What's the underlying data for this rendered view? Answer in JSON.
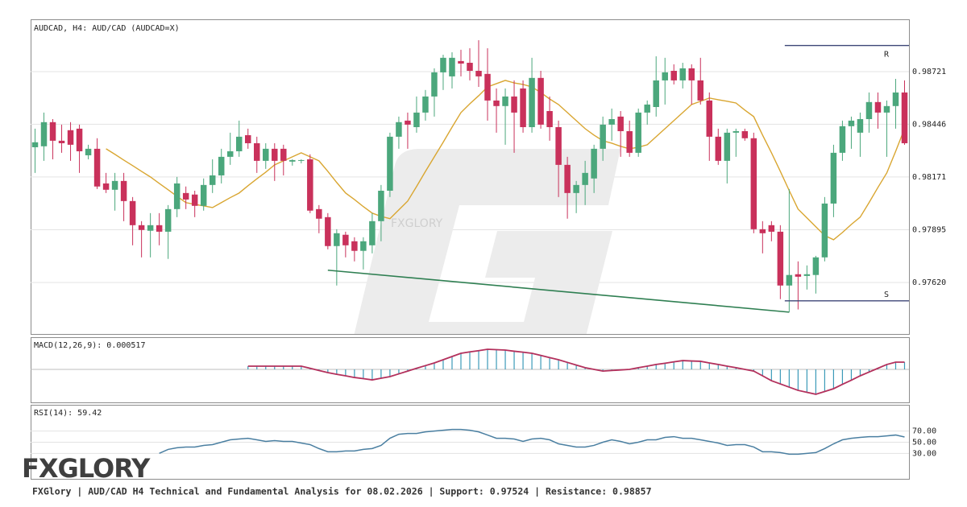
{
  "chart_data": [
    {
      "type": "candlestick",
      "title": "AUDCAD, H4: AUD/CAD (AUDCAD=X)",
      "up_color": "#4ba77c",
      "down_color": "#c9315b",
      "ylim": [
        0.97351,
        0.98994
      ],
      "yticks": [
        0.98721,
        0.98446,
        0.98171,
        0.97895,
        {
          "value": 0.9762,
          "label": "0.97620"
        }
      ],
      "grid": true,
      "watermark": "FXGLORY",
      "ohlc": [
        [
          0.98326,
          0.98423,
          0.98192,
          0.98352
        ],
        [
          0.98331,
          0.98507,
          0.98255,
          0.98457
        ],
        [
          0.98457,
          0.98473,
          0.98263,
          0.9836
        ],
        [
          0.9836,
          0.98444,
          0.98297,
          0.98347
        ],
        [
          0.98415,
          0.98457,
          0.98255,
          0.98339
        ],
        [
          0.98423,
          0.98444,
          0.98192,
          0.98305
        ],
        [
          0.98284,
          0.98339,
          0.98263,
          0.98318
        ],
        [
          0.98318,
          0.98373,
          0.98108,
          0.98121
        ],
        [
          0.98137,
          0.98192,
          0.98087,
          0.98104
        ],
        [
          0.98104,
          0.98192,
          0.97995,
          0.9815
        ],
        [
          0.9815,
          0.98192,
          0.9794,
          0.98045
        ],
        [
          0.98045,
          0.98066,
          0.97814,
          0.97919
        ],
        [
          0.97919,
          0.9794,
          0.97751,
          0.97894
        ],
        [
          0.9789,
          0.97982,
          0.97751,
          0.97919
        ],
        [
          0.97919,
          0.97982,
          0.97814,
          0.97885
        ],
        [
          0.97885,
          0.98024,
          0.97743,
          0.98003
        ],
        [
          0.98003,
          0.98171,
          0.97961,
          0.98137
        ],
        [
          0.98087,
          0.98121,
          0.98003,
          0.98053
        ],
        [
          0.98079,
          0.98099,
          0.97961,
          0.9802
        ],
        [
          0.9802,
          0.98163,
          0.97995,
          0.98129
        ],
        [
          0.98129,
          0.98263,
          0.98087,
          0.98179
        ],
        [
          0.98179,
          0.98318,
          0.98137,
          0.98276
        ],
        [
          0.98276,
          0.98402,
          0.98234,
          0.98305
        ],
        [
          0.98305,
          0.98465,
          0.98276,
          0.98381
        ],
        [
          0.98389,
          0.98423,
          0.98318,
          0.98347
        ],
        [
          0.98347,
          0.98381,
          0.98192,
          0.98255
        ],
        [
          0.98255,
          0.98347,
          0.98213,
          0.98318
        ],
        [
          0.98318,
          0.98347,
          0.9815,
          0.98255
        ],
        [
          0.98318,
          0.98339,
          0.98179,
          0.98255
        ],
        [
          0.98251,
          0.98263,
          0.9823,
          0.98259
        ],
        [
          0.98255,
          0.98263,
          0.98242,
          0.98259
        ],
        [
          0.98263,
          0.98289,
          0.97982,
          0.97995
        ],
        [
          0.98003,
          0.98024,
          0.97877,
          0.97953
        ],
        [
          0.97961,
          0.97982,
          0.97793,
          0.9781
        ],
        [
          0.9781,
          0.97898,
          0.97604,
          0.97877
        ],
        [
          0.97869,
          0.97885,
          0.97751,
          0.97814
        ],
        [
          0.97835,
          0.97856,
          0.9773,
          0.97785
        ],
        [
          0.97785,
          0.97856,
          0.97688,
          0.97835
        ],
        [
          0.97814,
          0.97982,
          0.97772,
          0.9794
        ],
        [
          0.9794,
          0.98129,
          0.97835,
          0.98099
        ],
        [
          0.98099,
          0.98402,
          0.98066,
          0.98381
        ],
        [
          0.98381,
          0.98486,
          0.98318,
          0.98457
        ],
        [
          0.98465,
          0.98507,
          0.98318,
          0.98444
        ],
        [
          0.98431,
          0.98591,
          0.98402,
          0.98507
        ],
        [
          0.98507,
          0.98625,
          0.98465,
          0.98591
        ],
        [
          0.98591,
          0.98738,
          0.98486,
          0.98717
        ],
        [
          0.98717,
          0.98809,
          0.98625,
          0.98793
        ],
        [
          0.98696,
          0.98822,
          0.98633,
          0.98793
        ],
        [
          0.98776,
          0.98835,
          0.98696,
          0.98763
        ],
        [
          0.98767,
          0.98843,
          0.98675,
          0.98725
        ],
        [
          0.98725,
          0.98885,
          0.98641,
          0.98696
        ],
        [
          0.98709,
          0.98843,
          0.98465,
          0.9857
        ],
        [
          0.9857,
          0.98633,
          0.98402,
          0.98541
        ],
        [
          0.98541,
          0.98633,
          0.98339,
          0.98591
        ],
        [
          0.98591,
          0.98675,
          0.98297,
          0.98507
        ],
        [
          0.98633,
          0.98675,
          0.98402,
          0.98431
        ],
        [
          0.98431,
          0.98793,
          0.98402,
          0.98688
        ],
        [
          0.98688,
          0.98725,
          0.98423,
          0.98444
        ],
        [
          0.98515,
          0.98591,
          0.9836,
          0.98431
        ],
        [
          0.98431,
          0.98465,
          0.98066,
          0.98234
        ],
        [
          0.98234,
          0.98276,
          0.97953,
          0.98087
        ],
        [
          0.98087,
          0.9815,
          0.97982,
          0.98129
        ],
        [
          0.98129,
          0.98255,
          0.98024,
          0.98192
        ],
        [
          0.98163,
          0.98339,
          0.98087,
          0.98318
        ],
        [
          0.98318,
          0.98486,
          0.98255,
          0.98444
        ],
        [
          0.98444,
          0.98528,
          0.9836,
          0.98473
        ],
        [
          0.98486,
          0.98515,
          0.98276,
          0.9841
        ],
        [
          0.9841,
          0.98465,
          0.98276,
          0.98297
        ],
        [
          0.98297,
          0.98528,
          0.98276,
          0.98507
        ],
        [
          0.98507,
          0.9857,
          0.98444,
          0.98549
        ],
        [
          0.98536,
          0.98801,
          0.98486,
          0.98675
        ],
        [
          0.98675,
          0.98793,
          0.98549,
          0.98717
        ],
        [
          0.98725,
          0.98759,
          0.98654,
          0.98675
        ],
        [
          0.98675,
          0.98767,
          0.98633,
          0.98738
        ],
        [
          0.98738,
          0.98759,
          0.98549,
          0.98675
        ],
        [
          0.98675,
          0.98793,
          0.98549,
          0.9857
        ],
        [
          0.9857,
          0.98612,
          0.98255,
          0.98381
        ],
        [
          0.98381,
          0.98423,
          0.98234,
          0.98255
        ],
        [
          0.98255,
          0.98423,
          0.98137,
          0.98402
        ],
        [
          0.98402,
          0.98423,
          0.98276,
          0.9841
        ],
        [
          0.9841,
          0.98423,
          0.9836,
          0.98373
        ],
        [
          0.98373,
          0.98402,
          0.97877,
          0.97898
        ],
        [
          0.97898,
          0.9794,
          0.97772,
          0.97877
        ],
        [
          0.97919,
          0.9794,
          0.97835,
          0.97885
        ],
        [
          0.97885,
          0.97919,
          0.97533,
          0.97604
        ],
        [
          0.97604,
          0.98108,
          0.97465,
          0.97659
        ],
        [
          0.97663,
          0.9773,
          0.97479,
          0.9765
        ],
        [
          0.97654,
          0.97709,
          0.97583,
          0.97663
        ],
        [
          0.97659,
          0.97759,
          0.97562,
          0.97751
        ],
        [
          0.97751,
          0.98066,
          0.9773,
          0.98032
        ],
        [
          0.98032,
          0.98339,
          0.97961,
          0.98297
        ],
        [
          0.98297,
          0.98465,
          0.98255,
          0.98436
        ],
        [
          0.98436,
          0.98486,
          0.98318,
          0.98465
        ],
        [
          0.98402,
          0.98507,
          0.98276,
          0.98473
        ],
        [
          0.98473,
          0.98612,
          0.98402,
          0.98562
        ],
        [
          0.98562,
          0.98612,
          0.98423,
          0.98507
        ],
        [
          0.98507,
          0.9857,
          0.98276,
          0.98541
        ],
        [
          0.98541,
          0.98683,
          0.98423,
          0.98612
        ],
        [
          0.98612,
          0.98675,
          0.98339,
          0.98347
        ]
      ],
      "overlay": {
        "color": "#d9a631",
        "values": [
          null,
          null,
          null,
          null,
          null,
          null,
          null,
          null,
          0.98318,
          0.98289,
          0.98259,
          0.9823,
          0.982,
          0.98171,
          0.98137,
          0.98104,
          0.9807,
          0.98037,
          0.98028,
          0.9802,
          0.98011,
          0.98037,
          0.98063,
          0.98087,
          0.98125,
          0.98161,
          0.98196,
          0.98234,
          0.98255,
          0.98276,
          0.98297,
          0.98276,
          0.98255,
          0.982,
          0.98142,
          0.98087,
          0.98053,
          0.98016,
          0.97982,
          0.97965,
          0.97953,
          0.97999,
          0.98045,
          0.98121,
          0.982,
          0.98276,
          0.98352,
          0.98431,
          0.98507,
          0.98553,
          0.98595,
          0.98641,
          0.98658,
          0.98675,
          0.98662,
          0.98654,
          0.98641,
          0.98612,
          0.98578,
          0.98549,
          0.98507,
          0.98465,
          0.98423,
          0.98389,
          0.9836,
          0.98347,
          0.98331,
          0.98318,
          0.98326,
          0.98339,
          0.98381,
          0.98423,
          0.98465,
          0.98507,
          0.98549,
          0.98566,
          0.98583,
          0.98574,
          0.98566,
          0.98557,
          0.9852,
          0.98486,
          0.98389,
          0.98297,
          0.982,
          0.981,
          0.98003,
          0.97957,
          0.97911,
          0.97865,
          0.97843,
          0.97881,
          0.97923,
          0.97961,
          0.98037,
          0.98116,
          0.98192,
          0.98305,
          0.98423
        ]
      },
      "trendline": {
        "color": "#2f7f52",
        "points": [
          [
            33,
            0.97684
          ],
          [
            85,
            0.97465
          ]
        ]
      },
      "levels": [
        {
          "label": "R",
          "value": 0.98857,
          "start": 85,
          "color": "#3d4677"
        },
        {
          "label": "S",
          "value": 0.97524,
          "start": 85,
          "color": "#3d4677"
        }
      ]
    },
    {
      "type": "macd",
      "title": "MACD(12,26,9): 0.000517",
      "line_color": "#b3305c",
      "bar_color": "#3b9ab8",
      "values": [
        null,
        null,
        null,
        null,
        null,
        null,
        null,
        null,
        null,
        null,
        null,
        null,
        null,
        null,
        null,
        null,
        null,
        null,
        null,
        null,
        null,
        null,
        null,
        null,
        0.00023,
        0.00023,
        0.00023,
        0.00023,
        0.00023,
        0.00023,
        0.00023,
        8e-05,
        -8e-05,
        -0.00023,
        -0.00035,
        -0.00046,
        -0.00058,
        -0.00066,
        -0.00075,
        -0.00063,
        -0.00052,
        -0.00032,
        -0.00012,
        8e-05,
        0.00027,
        0.00046,
        0.00069,
        0.00092,
        0.00115,
        0.00125,
        0.00134,
        0.00144,
        0.00141,
        0.00138,
        0.0013,
        0.00123,
        0.00115,
        0.001,
        0.00084,
        0.00069,
        0.0005,
        0.00031,
        0.00012,
        0,
        -0.00012,
        -8e-05,
        -4e-05,
        0,
        0.00012,
        0.00023,
        0.00035,
        0.00044,
        0.00054,
        0.00063,
        0.0006,
        0.00058,
        0.00046,
        0.00035,
        0.00023,
        0.00012,
        0,
        -0.00012,
        -0.00046,
        -0.00081,
        -0.00104,
        -0.00127,
        -0.0015,
        -0.00164,
        -0.00178,
        -0.00158,
        -0.00138,
        -0.00107,
        -0.00077,
        -0.00046,
        -0.00019,
        8e-05,
        0.00035,
        0.00052,
        0.000517
      ]
    },
    {
      "type": "line",
      "title": "RSI(14): 59.42",
      "color": "#4a7fa1",
      "ylim": [
        -15.7,
        115.7
      ],
      "yticks": [
        {
          "value": 70,
          "label": "70.00"
        },
        {
          "value": 50,
          "label": "50.00"
        },
        {
          "value": 30,
          "label": "30.00"
        }
      ],
      "values": [
        null,
        null,
        null,
        null,
        null,
        null,
        null,
        null,
        null,
        null,
        null,
        null,
        null,
        null,
        30.0,
        37.1,
        40.0,
        41.4,
        41.4,
        44.3,
        45.7,
        50,
        54.3,
        55.7,
        57.1,
        54.3,
        51.4,
        52.9,
        51.4,
        51.4,
        48.6,
        45.7,
        38.6,
        32.9,
        32.9,
        34.3,
        34.3,
        37.1,
        38.6,
        44.3,
        57.1,
        64.3,
        65.7,
        65.7,
        68.6,
        70,
        71.4,
        72.9,
        72.9,
        71.4,
        68.6,
        62.9,
        57.1,
        57.1,
        55.7,
        51.4,
        55.7,
        57.1,
        54.3,
        47.1,
        44.3,
        41.4,
        41.4,
        44.3,
        50,
        54.3,
        51.4,
        47.1,
        50,
        54.3,
        54.3,
        58.6,
        60,
        57.1,
        57.1,
        54.3,
        51.4,
        48.6,
        44.3,
        45.7,
        45.7,
        41.4,
        32.9,
        32.9,
        31.4,
        28.6,
        28.6,
        30,
        31.4,
        38.6,
        47.1,
        54.3,
        57.1,
        58.6,
        60,
        60,
        61.4,
        62.9,
        59.42
      ]
    }
  ],
  "logo": "FXGLORY",
  "footer": "FXGlory | AUD/CAD H4 Technical and Fundamental Analysis for 08.02.2026 | Support: 0.97524 | Resistance: 0.98857"
}
